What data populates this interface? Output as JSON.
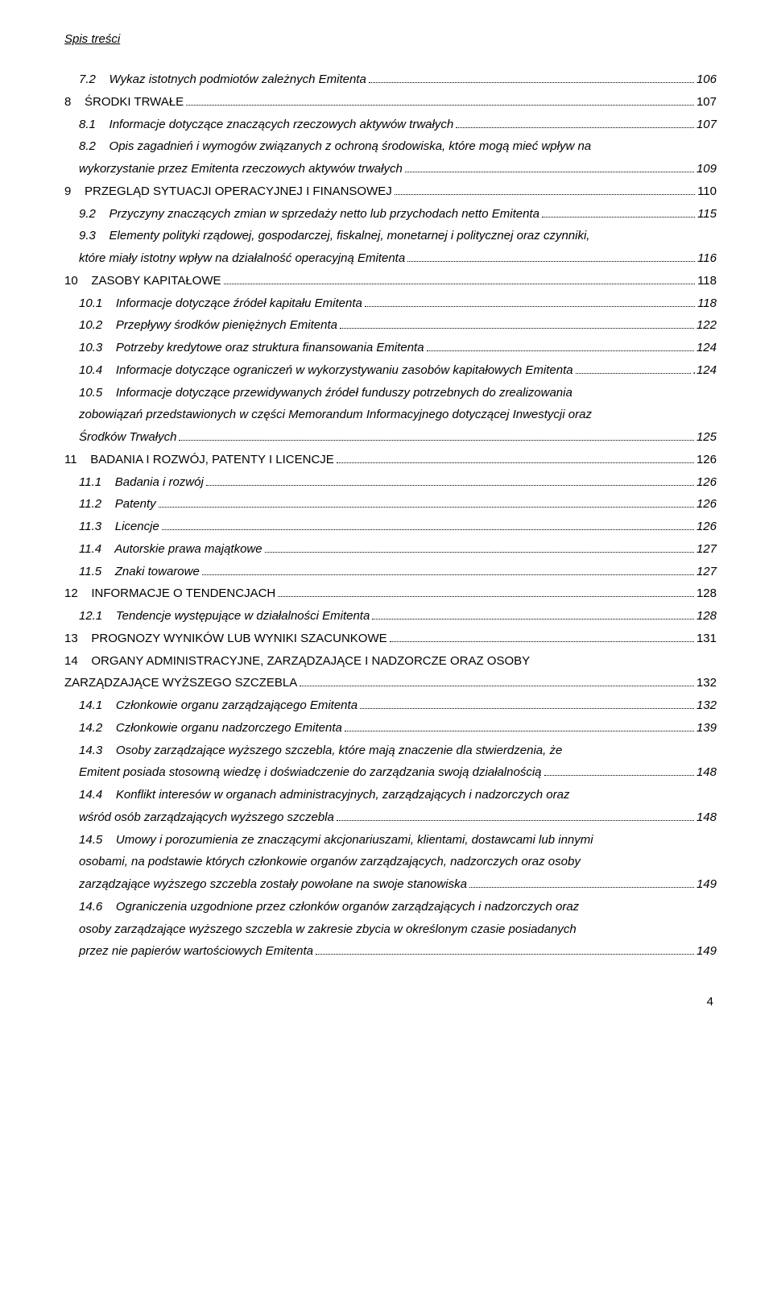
{
  "header": "Spis treści",
  "page_number": "4",
  "font": {
    "body_size_pt": 11,
    "line_height": 1.85,
    "text_color": "#000000",
    "background_color": "#ffffff",
    "dot_color": "#000000"
  },
  "entries": [
    {
      "indent": "indent0",
      "italic": true,
      "wrap": false,
      "label": "7.2    Wykaz istotnych podmiotów zależnych Emitenta",
      "page": "106"
    },
    {
      "indent": "",
      "italic": false,
      "wrap": false,
      "label": "8    ŚRODKI TRWAŁE",
      "page": "107"
    },
    {
      "indent": "indent0",
      "italic": true,
      "wrap": false,
      "label": "8.1    Informacje dotyczące znaczących rzeczowych aktywów trwałych",
      "page": "107"
    },
    {
      "indent": "indent0",
      "italic": true,
      "wrap": true,
      "lines": [
        "8.2    Opis zagadnień i wymogów związanych z ochroną środowiska, które mogą mieć wpływ na"
      ],
      "last_label": "wykorzystanie przez Emitenta rzeczowych aktywów trwałych",
      "last_indent": "indent-body",
      "page": "109"
    },
    {
      "indent": "",
      "italic": false,
      "wrap": false,
      "label": "9    PRZEGLĄD SYTUACJI OPERACYJNEJ I FINANSOWEJ",
      "page": "110"
    },
    {
      "indent": "indent0",
      "italic": true,
      "wrap": false,
      "label": "9.2    Przyczyny znaczących zmian w sprzedaży netto lub przychodach netto Emitenta",
      "page": "115"
    },
    {
      "indent": "indent0",
      "italic": true,
      "wrap": true,
      "lines": [
        "9.3    Elementy polityki rządowej, gospodarczej, fiskalnej, monetarnej i politycznej oraz czynniki,"
      ],
      "last_label": "które miały istotny wpływ na działalność operacyjną Emitenta",
      "last_indent": "indent-body",
      "page": "116"
    },
    {
      "indent": "",
      "italic": false,
      "wrap": false,
      "label": "10    ZASOBY KAPITAŁOWE",
      "page": "118"
    },
    {
      "indent": "indent0",
      "italic": true,
      "wrap": false,
      "label": "10.1    Informacje dotyczące źródeł kapitału Emitenta",
      "page": "118"
    },
    {
      "indent": "indent0",
      "italic": true,
      "wrap": false,
      "label": "10.2    Przepływy środków pieniężnych Emitenta",
      "page": "122"
    },
    {
      "indent": "indent0",
      "italic": true,
      "wrap": false,
      "label": "10.3    Potrzeby kredytowe oraz struktura finansowania Emitenta",
      "page": "124"
    },
    {
      "indent": "indent0",
      "italic": true,
      "wrap": false,
      "label": "10.4    Informacje dotyczące ograniczeń w wykorzystywaniu zasobów kapitałowych Emitenta",
      "page": ".124"
    },
    {
      "indent": "indent0",
      "italic": true,
      "wrap": true,
      "lines": [
        "10.5    Informacje dotyczące przewidywanych źródeł funduszy potrzebnych do zrealizowania",
        "zobowiązań przedstawionych w części Memorandum Informacyjnego dotyczącej Inwestycji oraz"
      ],
      "last_label": "Środków Trwałych",
      "last_indent": "indent-body",
      "page": "125"
    },
    {
      "indent": "",
      "italic": false,
      "wrap": false,
      "label": "11    BADANIA I ROZWÓJ, PATENTY I LICENCJE",
      "page": "126"
    },
    {
      "indent": "indent0",
      "italic": true,
      "wrap": false,
      "label": "11.1    Badania i rozwój",
      "page": "126"
    },
    {
      "indent": "indent0",
      "italic": true,
      "wrap": false,
      "label": "11.2    Patenty",
      "page": "126"
    },
    {
      "indent": "indent0",
      "italic": true,
      "wrap": false,
      "label": "11.3    Licencje",
      "page": "126"
    },
    {
      "indent": "indent0",
      "italic": true,
      "wrap": false,
      "label": "11.4    Autorskie prawa majątkowe",
      "page": "127"
    },
    {
      "indent": "indent0",
      "italic": true,
      "wrap": false,
      "label": "11.5    Znaki towarowe",
      "page": "127"
    },
    {
      "indent": "",
      "italic": false,
      "wrap": false,
      "label": "12    INFORMACJE O TENDENCJACH",
      "page": "128"
    },
    {
      "indent": "indent0",
      "italic": true,
      "wrap": false,
      "label": "12.1    Tendencje występujące w działalności Emitenta",
      "page": "128"
    },
    {
      "indent": "",
      "italic": false,
      "wrap": false,
      "label": "13    PROGNOZY WYNIKÓW LUB WYNIKI SZACUNKOWE",
      "page": "131"
    },
    {
      "indent": "",
      "italic": false,
      "wrap": true,
      "lines": [
        "14    ORGANY ADMINISTRACYJNE, ZARZĄDZAJĄCE I NADZORCZE ORAZ OSOBY"
      ],
      "last_label": "ZARZĄDZAJĄCE WYŻSZEGO SZCZEBLA",
      "last_indent": "",
      "page": "132"
    },
    {
      "indent": "indent0",
      "italic": true,
      "wrap": false,
      "label": "14.1    Członkowie organu zarządzającego Emitenta",
      "page": "132"
    },
    {
      "indent": "indent0",
      "italic": true,
      "wrap": false,
      "label": "14.2    Członkowie organu nadzorczego Emitenta",
      "page": "139"
    },
    {
      "indent": "indent0",
      "italic": true,
      "wrap": true,
      "lines": [
        "14.3    Osoby zarządzające wyższego szczebla, które mają znaczenie dla stwierdzenia, że"
      ],
      "last_label": "Emitent posiada stosowną wiedzę i doświadczenie do zarządzania swoją działalnością",
      "last_indent": "indent-body",
      "page": "148"
    },
    {
      "indent": "indent0",
      "italic": true,
      "wrap": true,
      "lines": [
        "14.4    Konflikt interesów w organach administracyjnych, zarządzających i nadzorczych oraz"
      ],
      "last_label": "wśród osób zarządzających wyższego szczebla",
      "last_indent": "indent-body",
      "page": "148"
    },
    {
      "indent": "indent0",
      "italic": true,
      "wrap": true,
      "lines": [
        "14.5    Umowy i porozumienia ze znaczącymi akcjonariuszami, klientami, dostawcami lub innymi",
        "osobami, na podstawie których członkowie organów zarządzających, nadzorczych oraz osoby"
      ],
      "last_label": "zarządzające wyższego szczebla zostały powołane na swoje stanowiska",
      "last_indent": "indent-body",
      "page": "149"
    },
    {
      "indent": "indent0",
      "italic": true,
      "wrap": true,
      "lines": [
        "14.6    Ograniczenia uzgodnione przez członków organów zarządzających i nadzorczych oraz",
        "osoby zarządzające wyższego szczebla w zakresie zbycia w określonym czasie posiadanych"
      ],
      "last_label": "przez nie papierów wartościowych Emitenta",
      "last_indent": "indent-body",
      "page": "149"
    }
  ]
}
